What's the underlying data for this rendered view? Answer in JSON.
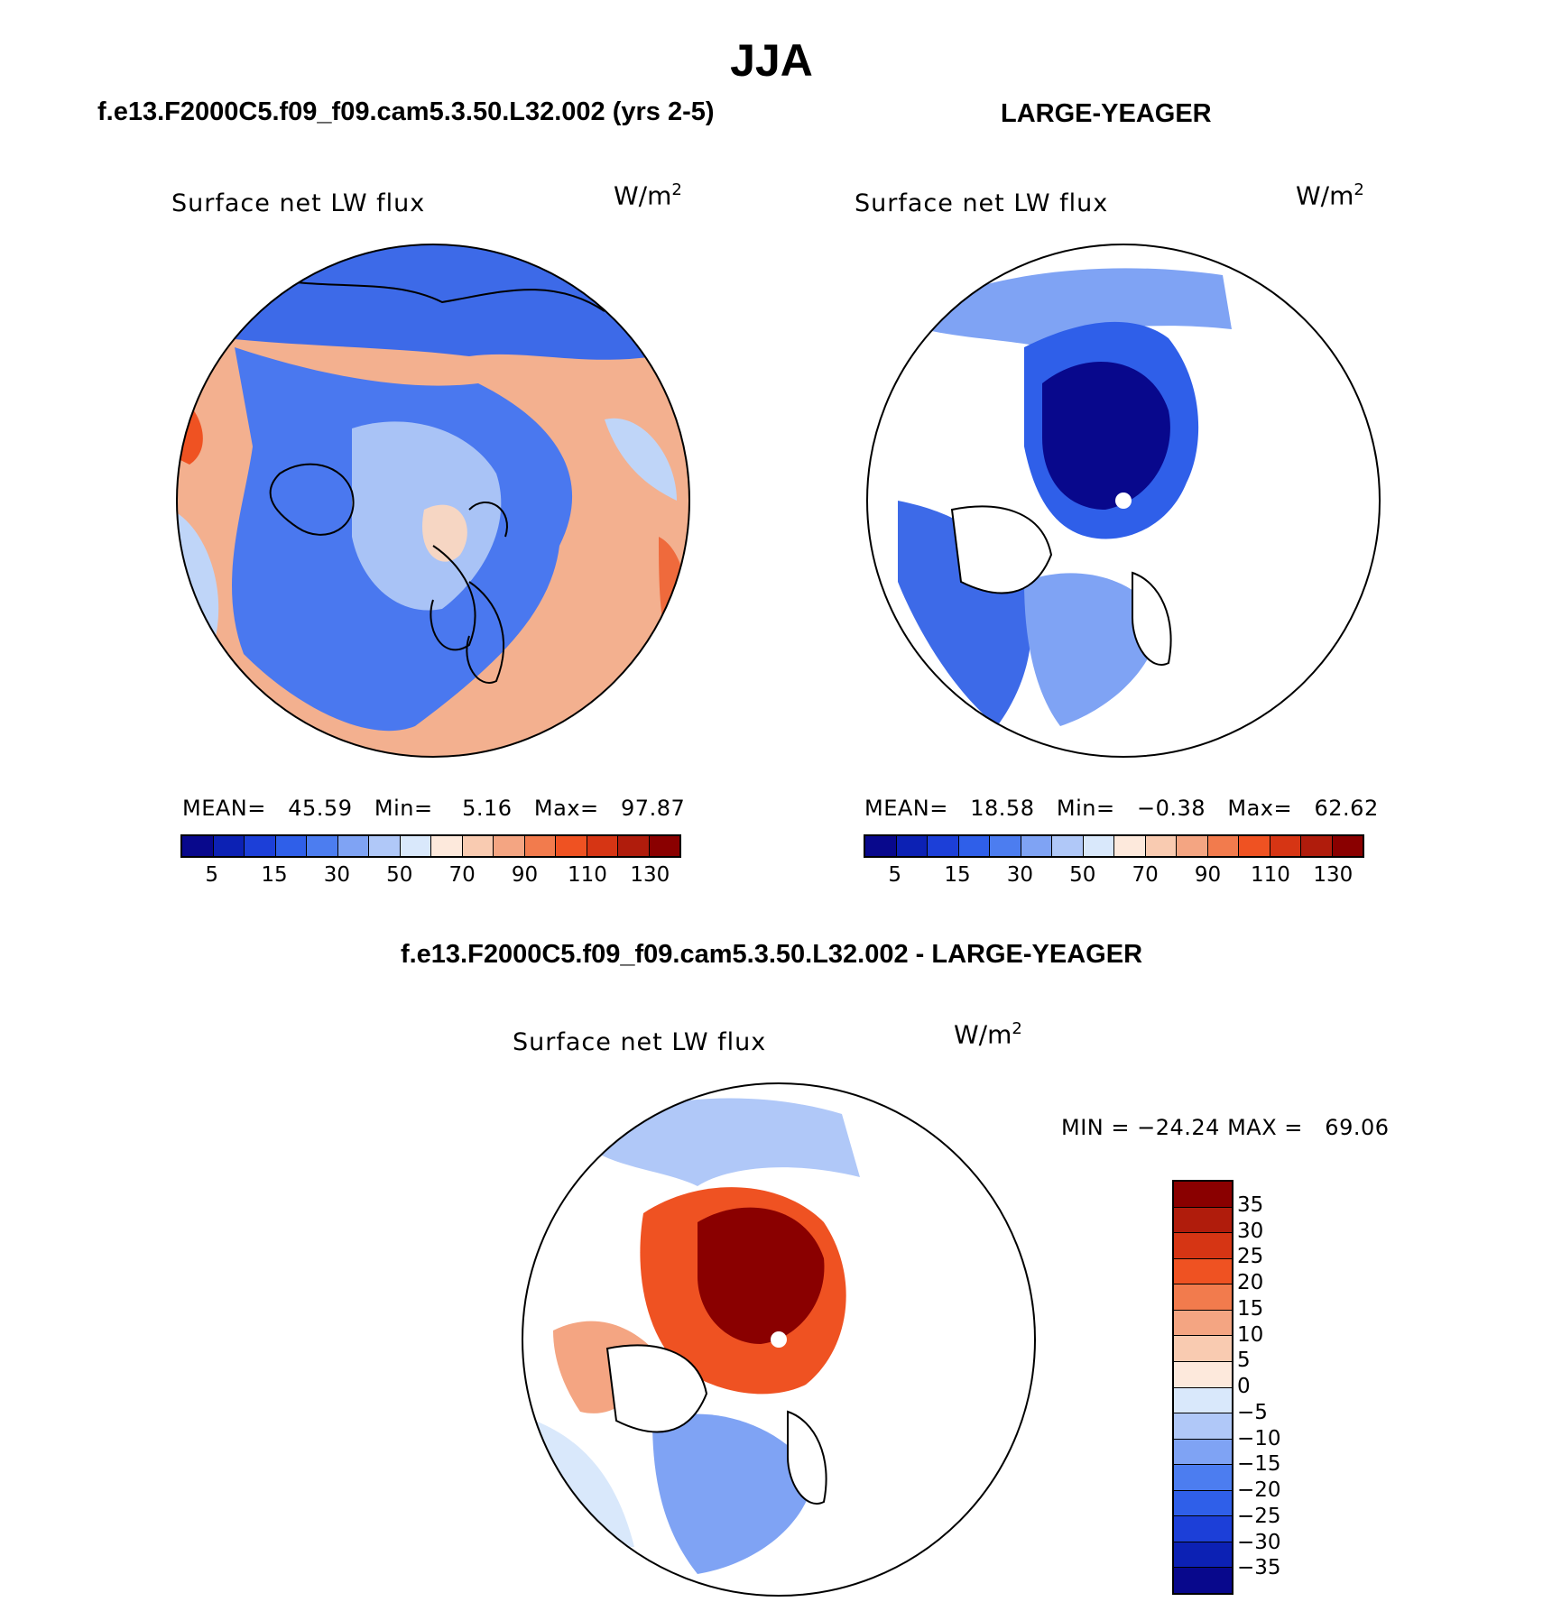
{
  "title": "JJA",
  "panels": [
    {
      "header": "f.e13.F2000C5.f09_f09.cam5.3.50.L32.002 (yrs 2-5)",
      "variable": "Surface net LW flux",
      "units_base": "W/m",
      "units_exp": "2",
      "stats": {
        "mean_label": "MEAN=",
        "mean": "45.59",
        "min_label": "Min=",
        "min": "5.16",
        "max_label": "Max=",
        "max": "97.87"
      },
      "map_fill": "#f3b08f"
    },
    {
      "header": "LARGE-YEAGER",
      "variable": "Surface net LW flux",
      "units_base": "W/m",
      "units_exp": "2",
      "stats": {
        "mean_label": "MEAN=",
        "mean": "18.58",
        "min_label": "Min=",
        "min": "−0.38",
        "max_label": "Max=",
        "max": "62.62"
      },
      "map_fill": "#ffffff"
    },
    {
      "header": "f.e13.F2000C5.f09_f09.cam5.3.50.L32.002 - LARGE-YEAGER",
      "variable": "Surface net LW flux",
      "units_base": "W/m",
      "units_exp": "2",
      "stats": {
        "min_label": "MIN =",
        "min": "−24.24",
        "max_label": "MAX =",
        "max": "69.06"
      },
      "map_fill": "#ffffff"
    }
  ],
  "colorbar_horizontal": {
    "colors": [
      "#08088c",
      "#0c21b4",
      "#1c3fd8",
      "#2f5fe9",
      "#4c7df0",
      "#7fa3f4",
      "#b0c8f8",
      "#d9e8fb",
      "#fde9dc",
      "#f9cbb1",
      "#f4a582",
      "#f27b4d",
      "#ef5222",
      "#d63514",
      "#b01c0c",
      "#8a0000"
    ],
    "labels": [
      "5",
      "15",
      "30",
      "50",
      "70",
      "90",
      "110",
      "130"
    ]
  },
  "colorbar_vertical": {
    "colors_top_to_bottom": [
      "#8a0000",
      "#b01c0c",
      "#d63514",
      "#ef5222",
      "#f27b4d",
      "#f4a582",
      "#f9cbb1",
      "#fde9dc",
      "#d9e8fb",
      "#b0c8f8",
      "#7fa3f4",
      "#4c7df0",
      "#2f5fe9",
      "#1c3fd8",
      "#0c21b4",
      "#08088c"
    ],
    "labels": [
      "35",
      "30",
      "25",
      "20",
      "15",
      "10",
      "5",
      "0",
      "−5",
      "−10",
      "−15",
      "−20",
      "−25",
      "−30",
      "−35"
    ]
  },
  "chart_data": [
    {
      "type": "heatmap",
      "title": "Surface net LW flux",
      "units": "W/m2",
      "mean": 45.59,
      "min": 5.16,
      "max": 97.87,
      "levels": [
        5,
        15,
        30,
        50,
        70,
        90,
        110,
        130
      ]
    },
    {
      "type": "heatmap",
      "title": "Surface net LW flux",
      "units": "W/m2",
      "mean": 18.58,
      "min": -0.38,
      "max": 62.62,
      "levels": [
        5,
        15,
        30,
        50,
        70,
        90,
        110,
        130
      ]
    },
    {
      "type": "heatmap",
      "title": "Surface net LW flux",
      "units": "W/m2",
      "min": -24.24,
      "max": 69.06,
      "levels": [
        -35,
        -30,
        -25,
        -20,
        -15,
        -10,
        -5,
        0,
        5,
        10,
        15,
        20,
        25,
        30,
        35
      ]
    }
  ]
}
